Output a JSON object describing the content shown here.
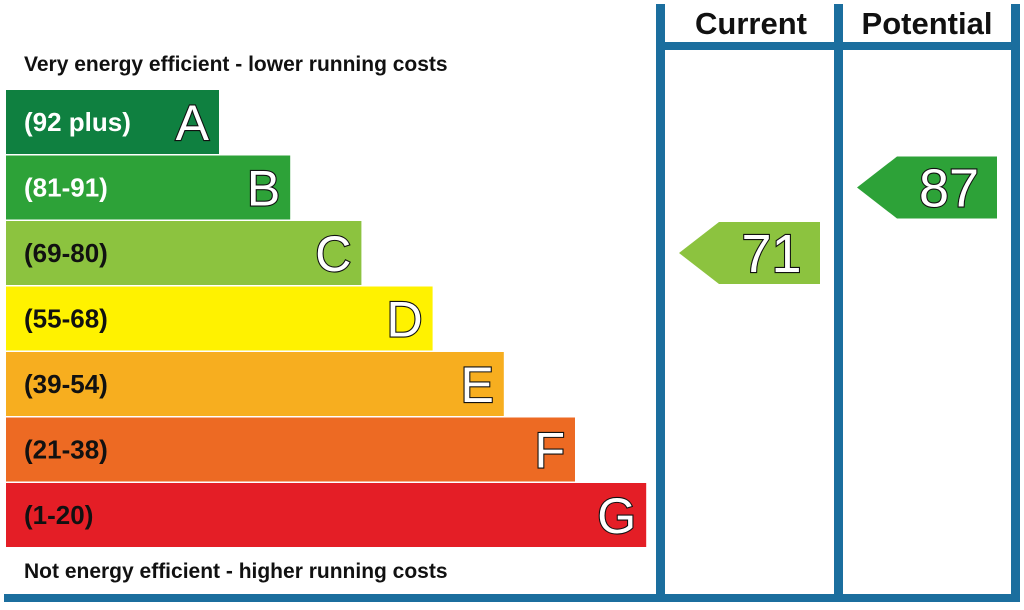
{
  "top_caption": "Very energy efficient - lower running costs",
  "bottom_caption": "Not energy efficient - higher running costs",
  "columns": {
    "current": "Current",
    "potential": "Potential"
  },
  "colors": {
    "frame": "#1b6e9e"
  },
  "chart_data": {
    "type": "bar",
    "categories": [
      "A",
      "B",
      "C",
      "D",
      "E",
      "F",
      "G"
    ],
    "bands": [
      {
        "letter": "A",
        "range": "(92 plus)",
        "min": 92,
        "max": null,
        "color": "#0f8040",
        "text_color": "light"
      },
      {
        "letter": "B",
        "range": "(81-91)",
        "min": 81,
        "max": 91,
        "color": "#2da238",
        "text_color": "light"
      },
      {
        "letter": "C",
        "range": "(69-80)",
        "min": 69,
        "max": 80,
        "color": "#8cc33f",
        "text_color": "dark"
      },
      {
        "letter": "D",
        "range": "(55-68)",
        "min": 55,
        "max": 68,
        "color": "#fff200",
        "text_color": "dark"
      },
      {
        "letter": "E",
        "range": "(39-54)",
        "min": 39,
        "max": 54,
        "color": "#f7ae1f",
        "text_color": "dark"
      },
      {
        "letter": "F",
        "range": "(21-38)",
        "min": 21,
        "max": 38,
        "color": "#ed6a23",
        "text_color": "dark"
      },
      {
        "letter": "G",
        "range": "(1-20)",
        "min": 1,
        "max": 20,
        "color": "#e41e26",
        "text_color": "dark"
      }
    ],
    "current": {
      "value": 71,
      "band": "C",
      "color": "#8cc33f"
    },
    "potential": {
      "value": 87,
      "band": "B",
      "color": "#2da238"
    }
  }
}
